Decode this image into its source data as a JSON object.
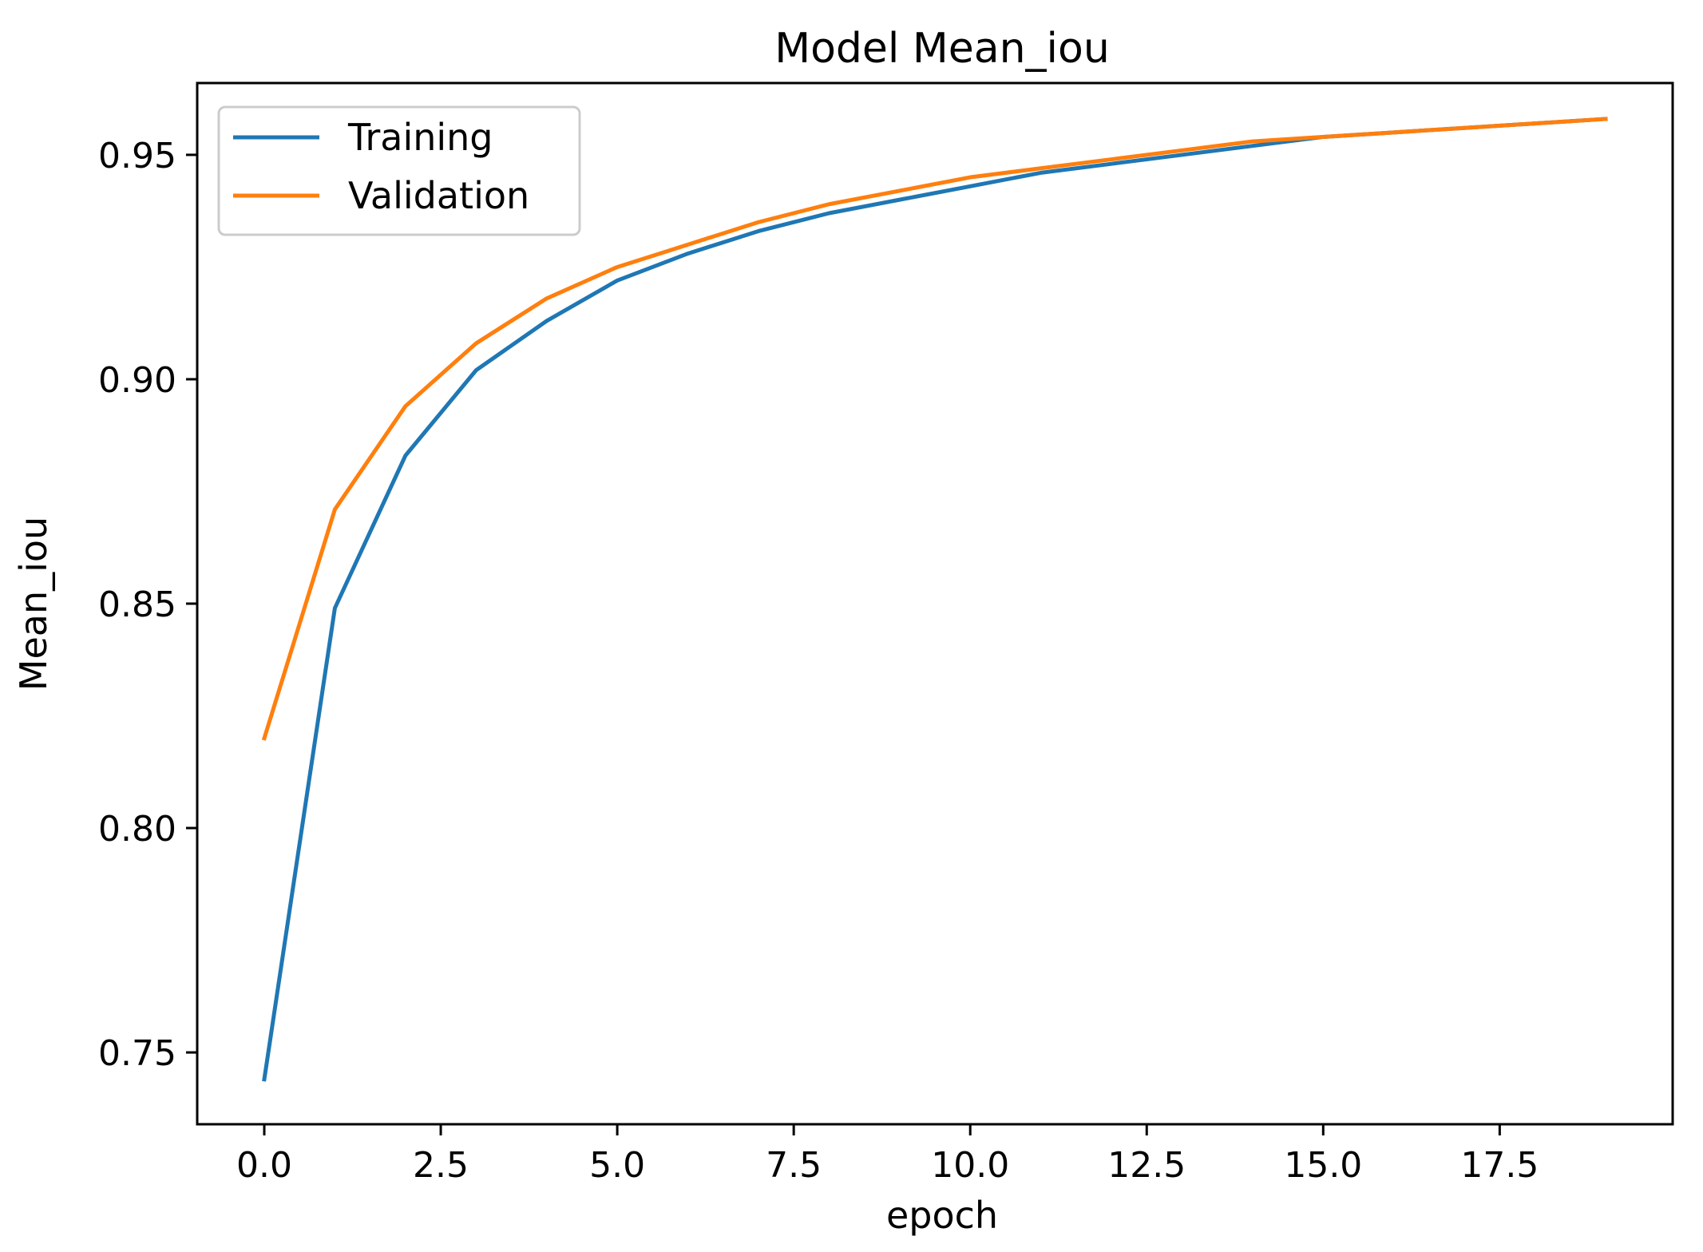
{
  "chart_data": {
    "type": "line",
    "title": "Model Mean_iou",
    "xlabel": "epoch",
    "ylabel": "Mean_iou",
    "xlim": [
      -0.95,
      19.95
    ],
    "ylim": [
      0.734,
      0.966
    ],
    "xticks": [
      0.0,
      2.5,
      5.0,
      7.5,
      10.0,
      12.5,
      15.0,
      17.5
    ],
    "xtick_labels": [
      "0.0",
      "2.5",
      "5.0",
      "7.5",
      "10.0",
      "12.5",
      "15.0",
      "17.5"
    ],
    "yticks": [
      0.75,
      0.8,
      0.85,
      0.9,
      0.95
    ],
    "ytick_labels": [
      "0.75",
      "0.80",
      "0.85",
      "0.90",
      "0.95"
    ],
    "grid": false,
    "legend_position": "upper-left",
    "x": [
      0,
      1,
      2,
      3,
      4,
      5,
      6,
      7,
      8,
      9,
      10,
      11,
      12,
      13,
      14,
      15,
      16,
      17,
      18,
      19
    ],
    "series": [
      {
        "name": "Training",
        "color": "#1f77b4",
        "values": [
          0.744,
          0.849,
          0.883,
          0.902,
          0.913,
          0.922,
          0.928,
          0.933,
          0.937,
          0.94,
          0.943,
          0.946,
          0.948,
          0.95,
          0.952,
          0.954,
          0.955,
          0.956,
          0.957,
          0.958
        ]
      },
      {
        "name": "Validation",
        "color": "#ff7f0e",
        "values": [
          0.82,
          0.871,
          0.894,
          0.908,
          0.918,
          0.925,
          0.93,
          0.935,
          0.939,
          0.942,
          0.945,
          0.947,
          0.949,
          0.951,
          0.953,
          0.954,
          0.955,
          0.956,
          0.957,
          0.958
        ]
      }
    ]
  }
}
